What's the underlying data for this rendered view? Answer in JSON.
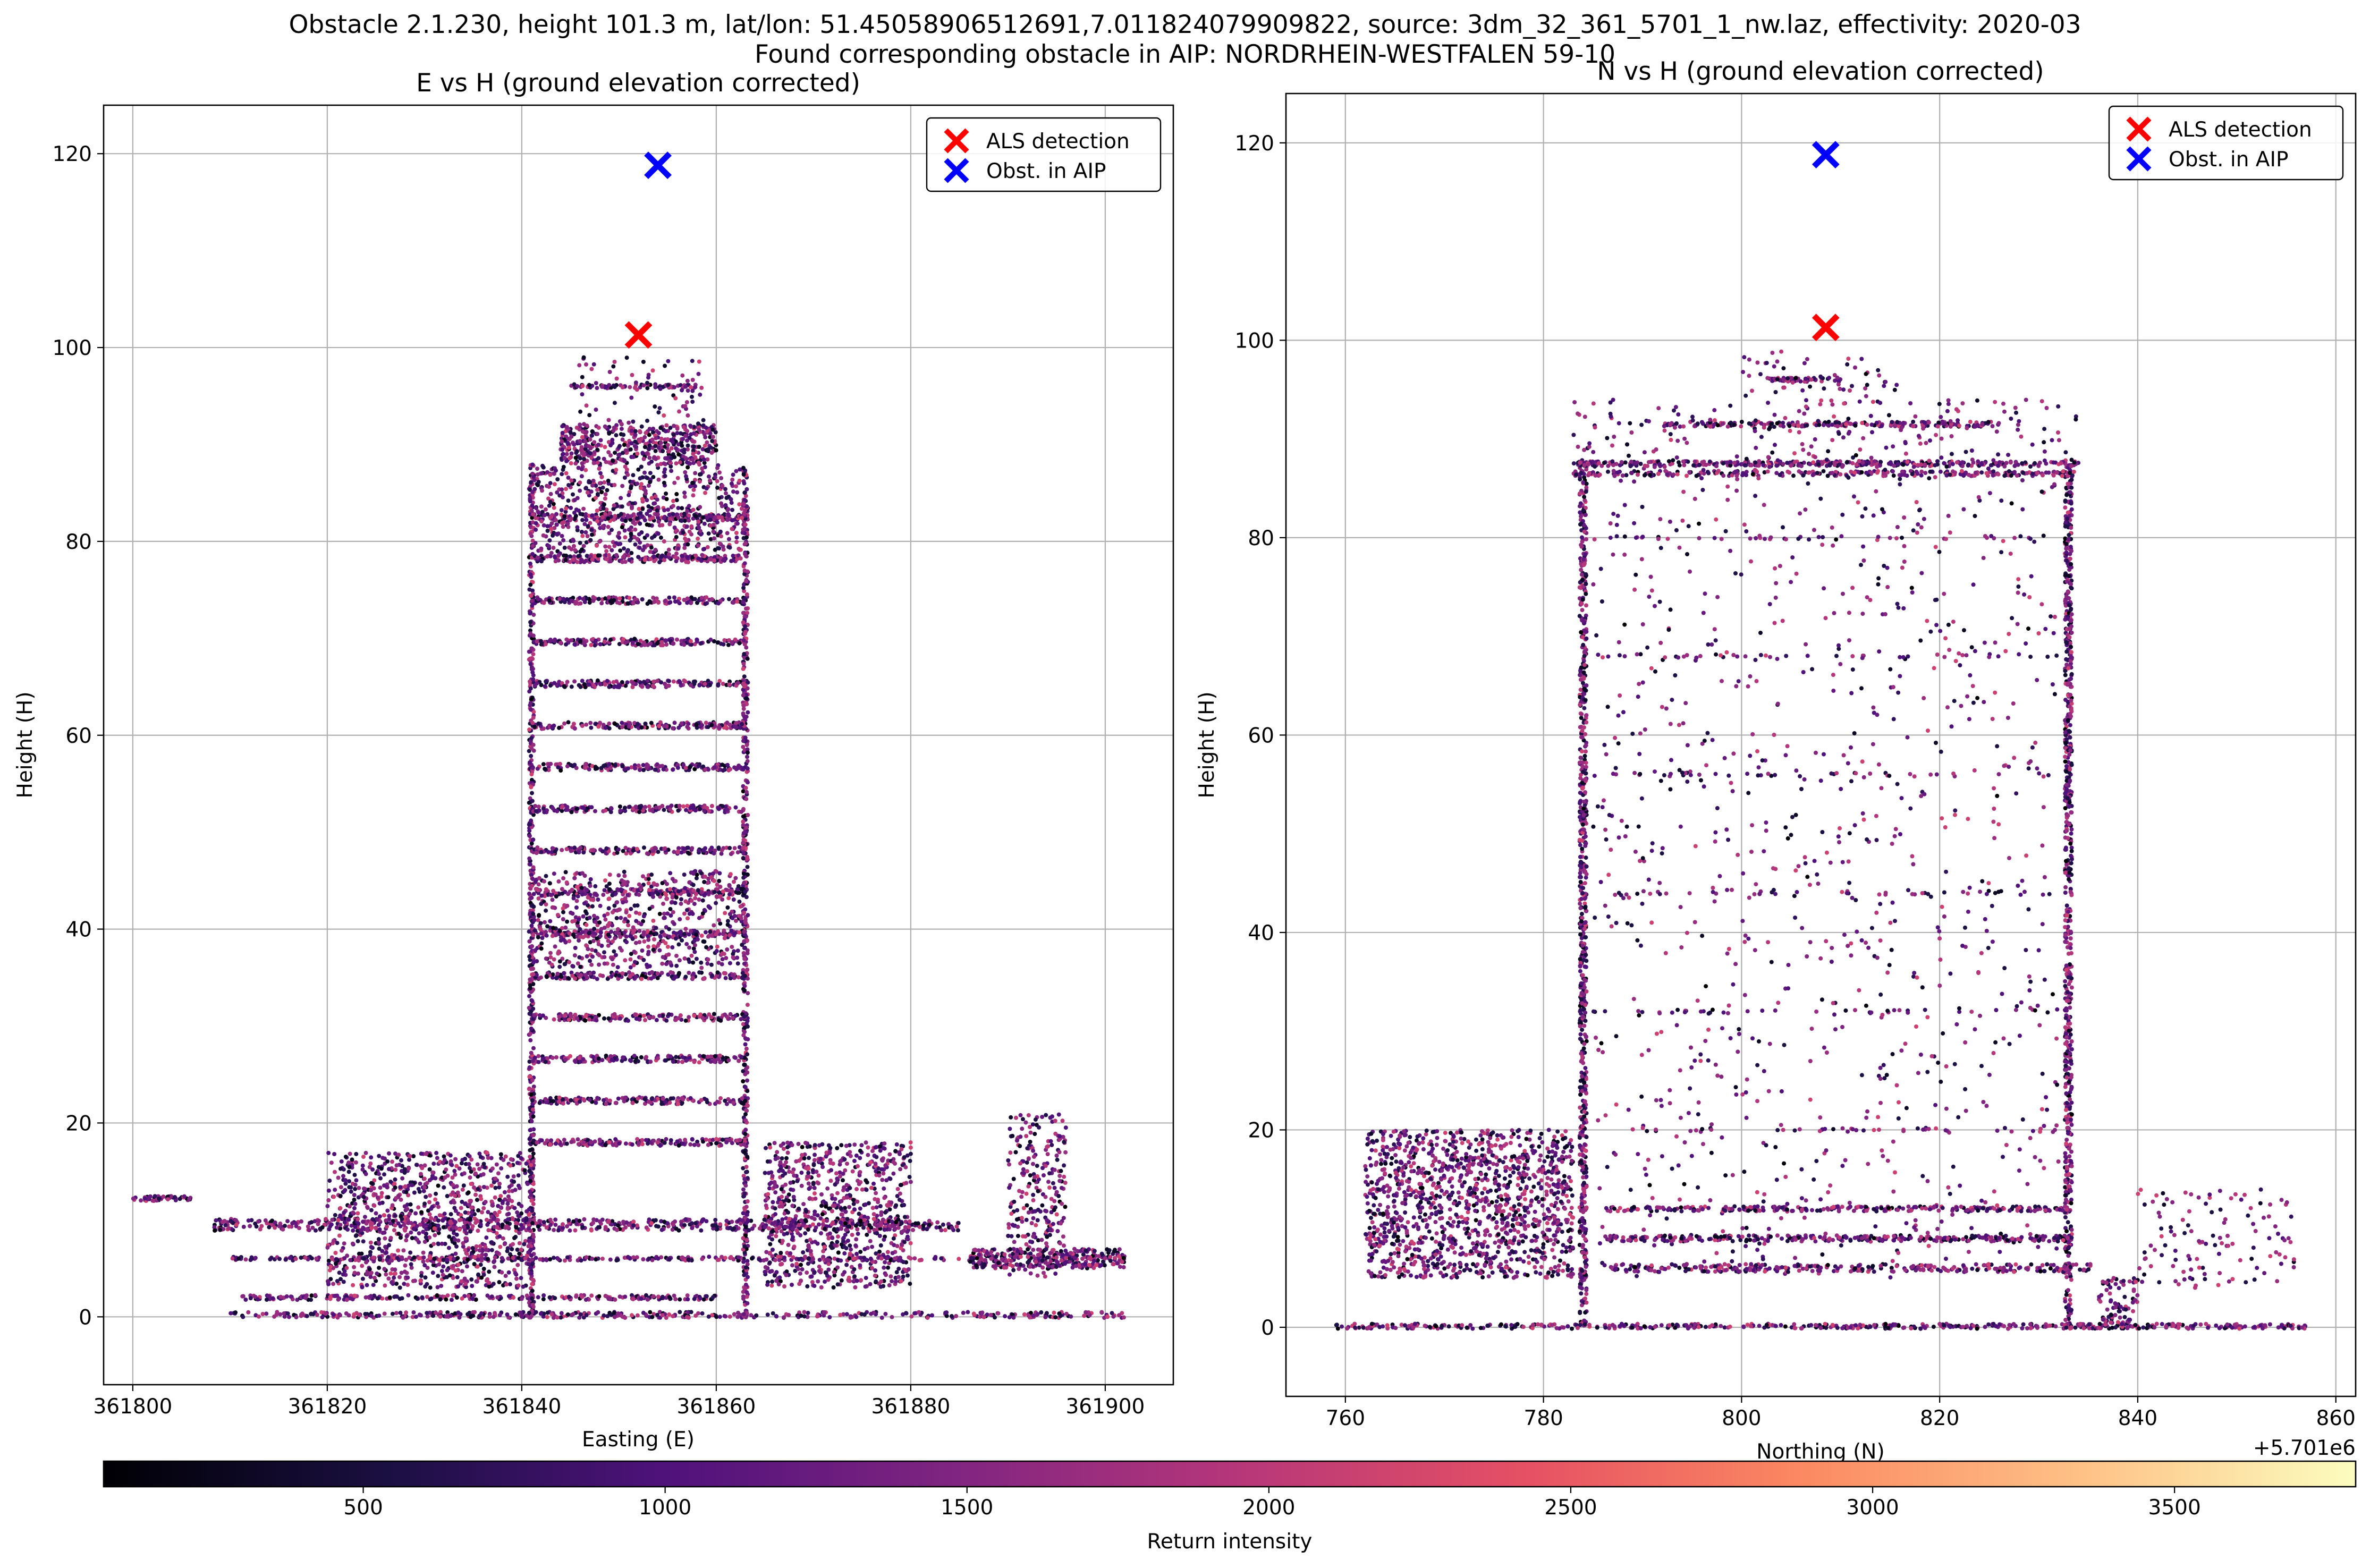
{
  "figure": {
    "suptitle_line1": "Obstacle 2.1.230, height 101.3 m, lat/lon: 51.45058906512691,7.011824079909822, source: 3dm_32_361_5701_1_nw.laz, effectivity: 2020-03",
    "suptitle_line2": "Found corresponding obstacle in AIP: NORDRHEIN-WESTFALEN 59-10"
  },
  "colors": {
    "als_marker": "#ff0000",
    "aip_marker": "#0000ff",
    "grid": "#b0b0b0",
    "colormap": "magma"
  },
  "chart_data": [
    {
      "type": "scatter",
      "title": "E vs H (ground elevation corrected)",
      "xlabel": "Easting (E)",
      "ylabel": "Height (H)",
      "xlim": [
        361797,
        361907
      ],
      "ylim": [
        -7,
        125
      ],
      "xticks": [
        361800,
        361820,
        361840,
        361860,
        361880,
        361900
      ],
      "xtick_labels": [
        "361800",
        "361820",
        "361840",
        "361860",
        "361880",
        "361900"
      ],
      "yticks": [
        0,
        20,
        40,
        60,
        80,
        100,
        120
      ],
      "ytick_labels": [
        "0",
        "20",
        "40",
        "60",
        "80",
        "100",
        "120"
      ],
      "grid": true,
      "legend_position": "upper right",
      "legend": [
        "ALS detection",
        "Obst. in AIP"
      ],
      "als_detection": {
        "x": 361852,
        "y": 101.3
      },
      "obstacle_aip": {
        "x": 361854,
        "y": 118.8
      },
      "point_cloud": {
        "color_by": "Return intensity",
        "regions": [
          {
            "name": "tower",
            "x": [
              361841,
              361863
            ],
            "y": [
              0,
              88
            ]
          },
          {
            "name": "roof-structure",
            "x": [
              361844,
              361860
            ],
            "y": [
              88,
              92
            ]
          },
          {
            "name": "spire-top",
            "x": [
              361845,
              361859
            ],
            "y": [
              92,
              99
            ]
          },
          {
            "name": "vegetation-left",
            "x": [
              361820,
              361841
            ],
            "y": [
              3,
              17
            ]
          },
          {
            "name": "vegetation-right",
            "x": [
              361865,
              361880
            ],
            "y": [
              3,
              18
            ]
          },
          {
            "name": "tree-far-right",
            "x": [
              361890,
              361896
            ],
            "y": [
              4,
              21
            ]
          },
          {
            "name": "ground-strip-left",
            "x": [
              361800,
              361806
            ],
            "y": [
              12,
              13
            ]
          },
          {
            "name": "low-structures",
            "x": [
              361810,
              361885
            ],
            "y": [
              0,
              11
            ]
          },
          {
            "name": "far-right-ground",
            "x": [
              361886,
              361902
            ],
            "y": [
              5,
              7
            ]
          }
        ]
      }
    },
    {
      "type": "scatter",
      "title": "N vs H (ground elevation corrected)",
      "xlabel": "Northing (N)",
      "ylabel": "Height (H)",
      "x_offset_label": "+5.701e6",
      "xlim": [
        754,
        862
      ],
      "ylim": [
        -7,
        125
      ],
      "xticks": [
        760,
        780,
        800,
        820,
        840,
        860
      ],
      "xtick_labels": [
        "760",
        "780",
        "800",
        "820",
        "840",
        "860"
      ],
      "yticks": [
        0,
        20,
        40,
        60,
        80,
        100,
        120
      ],
      "ytick_labels": [
        "0",
        "20",
        "40",
        "60",
        "80",
        "100",
        "120"
      ],
      "grid": true,
      "legend_position": "upper right",
      "legend": [
        "ALS detection",
        "Obst. in AIP"
      ],
      "als_detection": {
        "x": 808.5,
        "y": 101.3
      },
      "obstacle_aip": {
        "x": 808.5,
        "y": 118.8
      },
      "point_cloud": {
        "color_by": "Return intensity",
        "regions": [
          {
            "name": "facade-left",
            "x": [
              783.5,
              784.5
            ],
            "y": [
              0,
              88
            ]
          },
          {
            "name": "facade-right",
            "x": [
              832.5,
              833.5
            ],
            "y": [
              0,
              88
            ]
          },
          {
            "name": "interior-sparse",
            "x": [
              785,
              832
            ],
            "y": [
              5,
              86
            ]
          },
          {
            "name": "roof",
            "x": [
              783,
              834
            ],
            "y": [
              86,
              94
            ]
          },
          {
            "name": "roof-top",
            "x": [
              800,
              816
            ],
            "y": [
              94,
              99
            ]
          },
          {
            "name": "vegetation-left",
            "x": [
              762,
              783
            ],
            "y": [
              5,
              20
            ]
          },
          {
            "name": "ground",
            "x": [
              759,
              857
            ],
            "y": [
              0,
              1
            ]
          },
          {
            "name": "right-structures",
            "x": [
              840,
              856
            ],
            "y": [
              4,
              14
            ]
          }
        ]
      }
    }
  ],
  "colorbar": {
    "label": "Return intensity",
    "range": [
      70,
      3800
    ],
    "ticks": [
      500,
      1000,
      1500,
      2000,
      2500,
      3000,
      3500
    ],
    "tick_labels": [
      "500",
      "1000",
      "1500",
      "2000",
      "2500",
      "3000",
      "3500"
    ]
  }
}
